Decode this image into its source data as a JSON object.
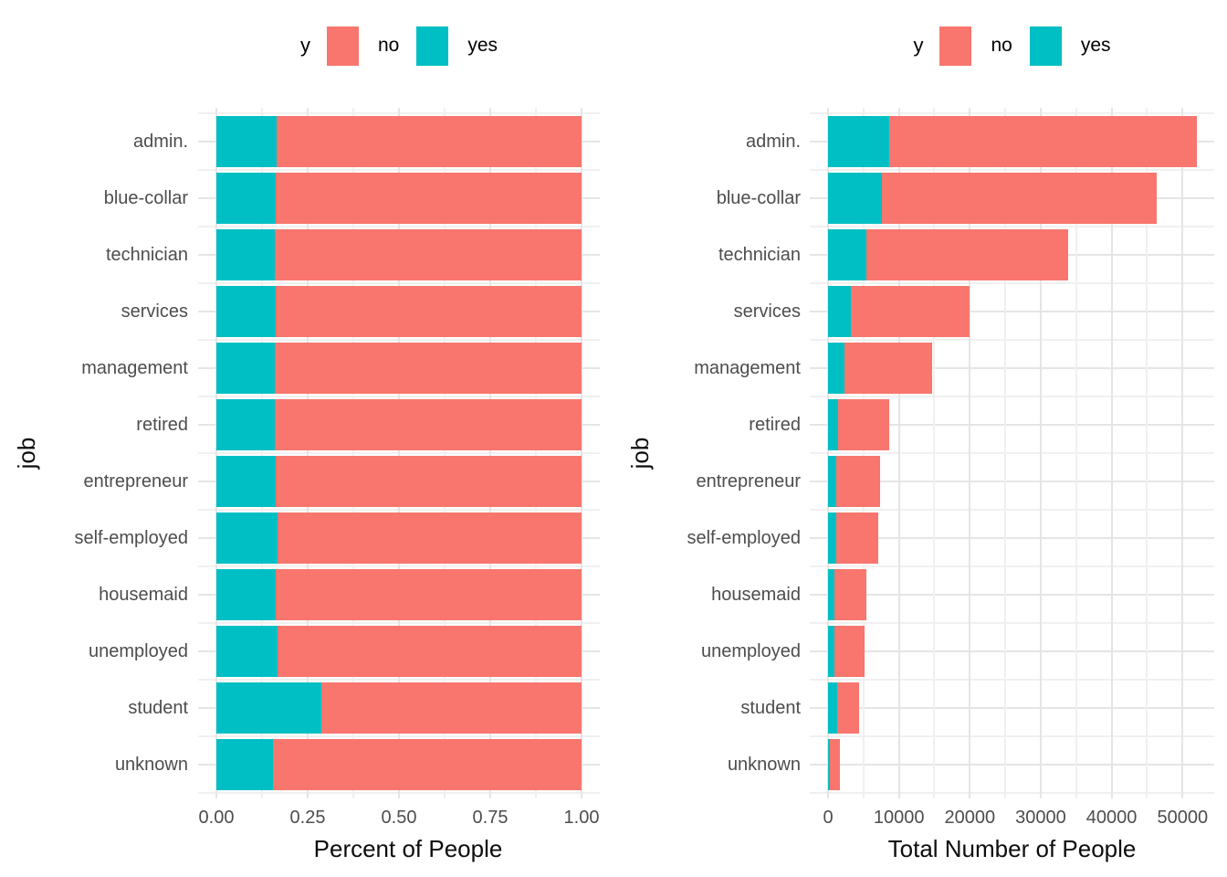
{
  "figure": {
    "background": "#FFFFFF",
    "palette": {
      "no": "#F8766D",
      "yes": "#00BFC4",
      "grid_major": "#E5E5E5",
      "grid_minor": "#F0F0F0",
      "axis_text": "#4D4D4D",
      "title_text": "#0D0D0D"
    }
  },
  "chart_data": [
    {
      "type": "bar",
      "orientation": "horizontal",
      "stacked": true,
      "normalized": true,
      "title": "",
      "xlabel": "Percent of People",
      "ylabel": "job",
      "legend": {
        "title": "y",
        "position": "top",
        "entries": [
          {
            "label": "no",
            "color": "#F8766D"
          },
          {
            "label": "yes",
            "color": "#00BFC4"
          }
        ]
      },
      "categories": [
        "admin.",
        "blue-collar",
        "technician",
        "services",
        "management",
        "retired",
        "entrepreneur",
        "self-employed",
        "housemaid",
        "unemployed",
        "student",
        "unknown"
      ],
      "series": [
        {
          "name": "yes",
          "color": "#00BFC4",
          "values": [
            0.165,
            0.163,
            0.161,
            0.163,
            0.16,
            0.161,
            0.163,
            0.168,
            0.163,
            0.168,
            0.288,
            0.155
          ]
        },
        {
          "name": "no",
          "color": "#F8766D",
          "values": [
            0.835,
            0.837,
            0.839,
            0.837,
            0.84,
            0.839,
            0.837,
            0.832,
            0.837,
            0.832,
            0.712,
            0.845
          ]
        }
      ],
      "xlim": [
        0,
        1.05
      ],
      "grid": "on",
      "x_ticks": [
        {
          "value": 0,
          "label": "0.00"
        },
        {
          "value": 0.25,
          "label": "0.25"
        },
        {
          "value": 0.5,
          "label": "0.50"
        },
        {
          "value": 0.75,
          "label": "0.75"
        },
        {
          "value": 1.0,
          "label": "1.00"
        }
      ],
      "x_minor_ticks": [
        0.125,
        0.375,
        0.625,
        0.875
      ]
    },
    {
      "type": "bar",
      "orientation": "horizontal",
      "stacked": true,
      "normalized": false,
      "title": "",
      "xlabel": "Total Number of People",
      "ylabel": "job",
      "legend": {
        "title": "y",
        "position": "top",
        "entries": [
          {
            "label": "no",
            "color": "#F8766D"
          },
          {
            "label": "yes",
            "color": "#00BFC4"
          }
        ]
      },
      "categories": [
        "admin.",
        "blue-collar",
        "technician",
        "services",
        "management",
        "retired",
        "entrepreneur",
        "self-employed",
        "housemaid",
        "unemployed",
        "student",
        "unknown"
      ],
      "series": [
        {
          "name": "yes",
          "color": "#00BFC4",
          "values": [
            8600,
            7550,
            5450,
            3250,
            2360,
            1390,
            1190,
            1190,
            880,
            855,
            1270,
            265
          ]
        },
        {
          "name": "no",
          "color": "#F8766D",
          "values": [
            43400,
            38750,
            28450,
            16650,
            12340,
            7210,
            6110,
            5910,
            4520,
            4245,
            3130,
            1435
          ]
        }
      ],
      "totals": [
        52000,
        46300,
        33900,
        19900,
        14700,
        8600,
        7300,
        7100,
        5400,
        5100,
        4400,
        1700
      ],
      "xlim": [
        0,
        54500
      ],
      "grid": "on",
      "x_ticks": [
        {
          "value": 0,
          "label": "0"
        },
        {
          "value": 10000,
          "label": "10000"
        },
        {
          "value": 20000,
          "label": "20000"
        },
        {
          "value": 30000,
          "label": "30000"
        },
        {
          "value": 40000,
          "label": "40000"
        },
        {
          "value": 50000,
          "label": "50000"
        }
      ],
      "x_minor_ticks": [
        5000,
        15000,
        25000,
        35000,
        45000
      ]
    }
  ]
}
